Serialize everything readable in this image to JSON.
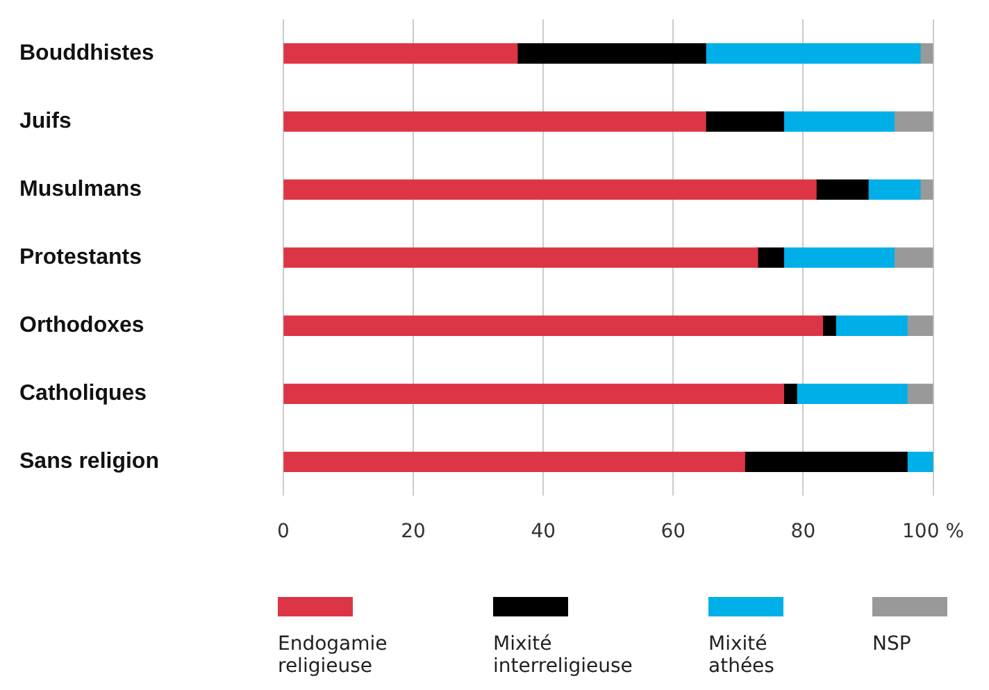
{
  "chart_data": {
    "type": "bar",
    "orientation": "horizontal",
    "stacked": true,
    "categories": [
      "Bouddhistes",
      "Juifs",
      "Musulmans",
      "Protestants",
      "Orthodoxes",
      "Catholiques",
      "Sans religion"
    ],
    "series": [
      {
        "name": "Endogamie religieuse",
        "color": "#dc3545",
        "values": [
          36,
          65,
          82,
          73,
          83,
          77,
          71
        ]
      },
      {
        "name": "Mixité interreligieuse",
        "color": "#000000",
        "values": [
          29,
          12,
          8,
          4,
          2,
          2,
          25
        ]
      },
      {
        "name": "Mixité athées",
        "color": "#00aee8",
        "values": [
          33,
          17,
          8,
          17,
          11,
          17,
          4
        ]
      },
      {
        "name": "NSP",
        "color": "#999999",
        "values": [
          2,
          6,
          2,
          6,
          4,
          4,
          0
        ]
      }
    ],
    "xlim": [
      0,
      100
    ],
    "xticks": [
      0,
      20,
      40,
      60,
      80,
      {
        "value": 100,
        "label": "100 %"
      }
    ],
    "grid": "x",
    "legend": "bottom"
  }
}
